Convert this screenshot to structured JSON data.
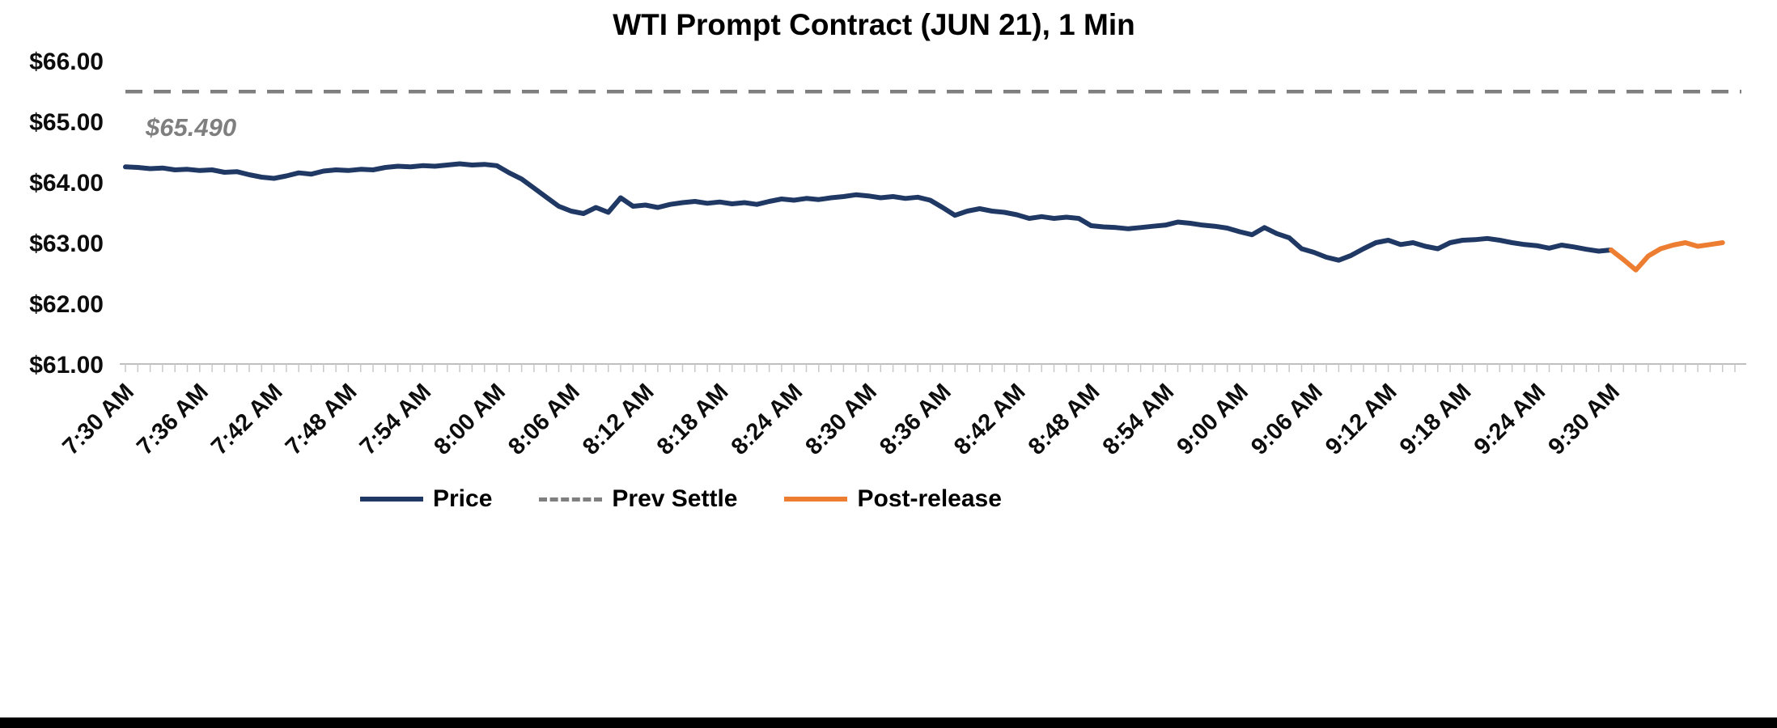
{
  "chart_data": {
    "type": "line",
    "title": "WTI Prompt Contract (JUN 21), 1 Min",
    "xlabel": "",
    "ylabel": "",
    "ylim": [
      61,
      66
    ],
    "grid": false,
    "legend_position": "bottom",
    "axis_color": "#bfbfbf",
    "tick_color": "#c8c8c8",
    "yticks": [
      {
        "value": 66,
        "label": "$66.00"
      },
      {
        "value": 65,
        "label": "$65.00"
      },
      {
        "value": 64,
        "label": "$64.00"
      },
      {
        "value": 63,
        "label": "$63.00"
      },
      {
        "value": 62,
        "label": "$62.00"
      },
      {
        "value": 61,
        "label": "$61.00"
      }
    ],
    "xticks": [
      {
        "minute": 0,
        "label": "7:30 AM"
      },
      {
        "minute": 6,
        "label": "7:36 AM"
      },
      {
        "minute": 12,
        "label": "7:42 AM"
      },
      {
        "minute": 18,
        "label": "7:48 AM"
      },
      {
        "minute": 24,
        "label": "7:54 AM"
      },
      {
        "minute": 30,
        "label": "8:00 AM"
      },
      {
        "minute": 36,
        "label": "8:06 AM"
      },
      {
        "minute": 42,
        "label": "8:12 AM"
      },
      {
        "minute": 48,
        "label": "8:18 AM"
      },
      {
        "minute": 54,
        "label": "8:24 AM"
      },
      {
        "minute": 60,
        "label": "8:30 AM"
      },
      {
        "minute": 66,
        "label": "8:36 AM"
      },
      {
        "minute": 72,
        "label": "8:42 AM"
      },
      {
        "minute": 78,
        "label": "8:48 AM"
      },
      {
        "minute": 84,
        "label": "8:54 AM"
      },
      {
        "minute": 90,
        "label": "9:00 AM"
      },
      {
        "minute": 96,
        "label": "9:06 AM"
      },
      {
        "minute": 102,
        "label": "9:12 AM"
      },
      {
        "minute": 108,
        "label": "9:18 AM"
      },
      {
        "minute": 114,
        "label": "9:24 AM"
      },
      {
        "minute": 120,
        "label": "9:30 AM"
      }
    ],
    "minute_tick_range": [
      0,
      130
    ],
    "prev_settle": {
      "value": 65.49,
      "annotation": "$65.490",
      "color": "#7f7f7f"
    },
    "series": [
      {
        "name": "Price",
        "color": "#1f3864",
        "start_minute": 0,
        "values": [
          64.25,
          64.24,
          64.22,
          64.23,
          64.2,
          64.21,
          64.19,
          64.2,
          64.16,
          64.17,
          64.12,
          64.08,
          64.06,
          64.1,
          64.15,
          64.13,
          64.18,
          64.2,
          64.19,
          64.21,
          64.2,
          64.24,
          64.26,
          64.25,
          64.27,
          64.26,
          64.28,
          64.3,
          64.28,
          64.29,
          64.27,
          64.15,
          64.05,
          63.9,
          63.75,
          63.6,
          63.52,
          63.48,
          63.58,
          63.5,
          63.74,
          63.6,
          63.62,
          63.58,
          63.63,
          63.66,
          63.68,
          63.65,
          63.67,
          63.64,
          63.66,
          63.63,
          63.68,
          63.72,
          63.7,
          63.73,
          63.71,
          63.74,
          63.76,
          63.79,
          63.77,
          63.74,
          63.76,
          63.73,
          63.75,
          63.7,
          63.58,
          63.45,
          63.52,
          63.56,
          63.52,
          63.5,
          63.46,
          63.4,
          63.43,
          63.4,
          63.42,
          63.4,
          63.28,
          63.26,
          63.25,
          63.23,
          63.25,
          63.27,
          63.29,
          63.34,
          63.32,
          63.29,
          63.27,
          63.24,
          63.18,
          63.13,
          63.25,
          63.15,
          63.08,
          62.9,
          62.84,
          62.76,
          62.71,
          62.79,
          62.9,
          63.0,
          63.04,
          62.97,
          63.0,
          62.94,
          62.9,
          63.0,
          63.04,
          63.05,
          63.07,
          63.04,
          63.0,
          62.97,
          62.95,
          62.91,
          62.96,
          62.93,
          62.89,
          62.86,
          62.88
        ]
      },
      {
        "name": "Post-release",
        "color": "#ed7d31",
        "start_minute": 120,
        "values": [
          62.88,
          62.72,
          62.55,
          62.78,
          62.9,
          62.96,
          63.0,
          62.94,
          62.97,
          63.0
        ]
      }
    ],
    "legend": [
      {
        "label": "Price",
        "color": "#1f3864",
        "style": "solid"
      },
      {
        "label": "Prev Settle",
        "color": "#7f7f7f",
        "style": "dashed"
      },
      {
        "label": "Post-release",
        "color": "#ed7d31",
        "style": "solid"
      }
    ]
  }
}
